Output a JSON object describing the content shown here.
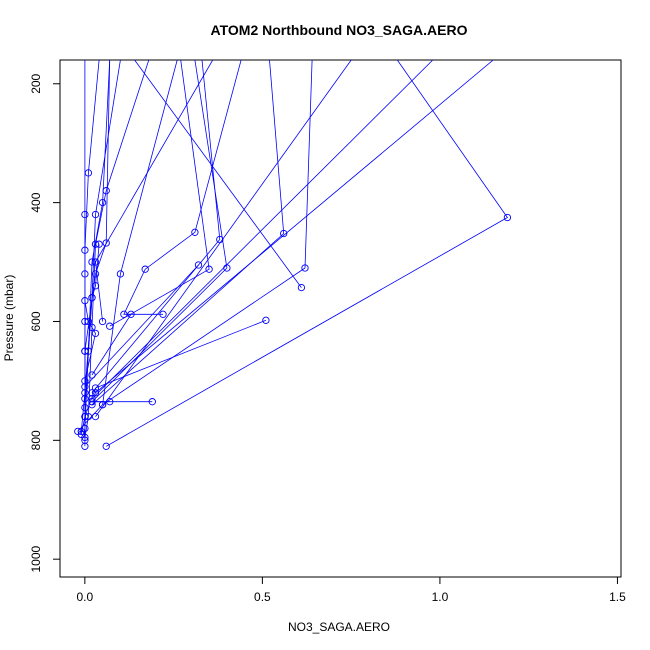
{
  "chart_data": {
    "type": "line",
    "title": "ATOM2 Northbound NO3_SAGA.AERO",
    "xlabel": "NO3_SAGA.AERO",
    "ylabel": "Pressure (mbar)",
    "xlim": [
      -0.07,
      1.51
    ],
    "ylim": [
      1030,
      160
    ],
    "y_reversed": true,
    "x_ticks": [
      0.0,
      0.5,
      1.0,
      1.5
    ],
    "x_tick_labels": [
      "0.0",
      "0.5",
      "1.0",
      "1.5"
    ],
    "y_ticks": [
      200,
      400,
      600,
      800,
      1000
    ],
    "y_tick_labels": [
      "200",
      "400",
      "600",
      "800",
      "1000"
    ],
    "grid": false,
    "legend": "none",
    "series_color": "#0000ff",
    "series": [
      {
        "points": [
          [
            0.07,
            160
          ],
          [
            0.05,
            400
          ],
          [
            0.02,
            500
          ],
          [
            0.01,
            650
          ],
          [
            0.0,
            780
          ],
          [
            0.0,
            810
          ]
        ]
      },
      {
        "points": [
          [
            0.04,
            160
          ],
          [
            0.01,
            350
          ],
          [
            0.0,
            480
          ],
          [
            0.0,
            600
          ],
          [
            0.0,
            760
          ],
          [
            -0.01,
            790
          ]
        ]
      },
      {
        "points": [
          [
            0.1,
            160
          ],
          [
            0.03,
            420
          ],
          [
            0.02,
            560
          ],
          [
            0.0,
            720
          ],
          [
            -0.01,
            785
          ]
        ]
      },
      {
        "points": [
          [
            0.18,
            160
          ],
          [
            0.06,
            380
          ],
          [
            0.03,
            470
          ],
          [
            0.02,
            610
          ],
          [
            0.01,
            760
          ],
          [
            0.0,
            795
          ]
        ]
      },
      {
        "points": [
          [
            0.0,
            160
          ],
          [
            0.0,
            420
          ],
          [
            0.0,
            520
          ],
          [
            0.0,
            650
          ],
          [
            0.0,
            800
          ]
        ]
      },
      {
        "points": [
          [
            0.26,
            160
          ],
          [
            0.1,
            520
          ],
          [
            0.05,
            740
          ],
          [
            -0.02,
            785
          ]
        ]
      },
      {
        "points": [
          [
            0.36,
            160
          ],
          [
            0.03,
            500
          ],
          [
            0.05,
            600
          ]
        ]
      },
      {
        "points": [
          [
            1.15,
            160
          ],
          [
            0.03,
            720
          ]
        ]
      },
      {
        "points": [
          [
            0.98,
            160
          ],
          [
            0.02,
            730
          ]
        ]
      },
      {
        "points": [
          [
            0.88,
            160
          ],
          [
            1.19,
            425
          ],
          [
            0.06,
            810
          ]
        ]
      },
      {
        "points": [
          [
            0.75,
            160
          ],
          [
            0.03,
            760
          ]
        ]
      },
      {
        "points": [
          [
            0.52,
            160
          ],
          [
            0.56,
            452
          ],
          [
            0.02,
            740
          ]
        ]
      },
      {
        "points": [
          [
            0.64,
            160
          ],
          [
            0.62,
            510
          ],
          [
            0.05,
            740
          ]
        ]
      },
      {
        "points": [
          [
            0.33,
            160
          ],
          [
            0.38,
            462
          ],
          [
            0.02,
            720
          ]
        ]
      },
      {
        "points": [
          [
            0.44,
            160
          ],
          [
            0.31,
            450
          ],
          [
            0.17,
            512
          ],
          [
            0.11,
            588
          ],
          [
            0.22,
            588
          ]
        ]
      },
      {
        "points": [
          [
            0.14,
            160
          ],
          [
            0.61,
            543
          ]
        ]
      },
      {
        "points": [
          [
            0.27,
            160
          ],
          [
            0.35,
            512
          ],
          [
            0.07,
            608
          ]
        ]
      },
      {
        "points": [
          [
            0.31,
            160
          ],
          [
            0.4,
            510
          ],
          [
            0.02,
            735
          ],
          [
            0.07,
            735
          ]
        ]
      },
      {
        "points": [
          [
            0.02,
            735
          ],
          [
            0.19,
            735
          ]
        ]
      },
      {
        "points": [
          [
            0.51,
            598
          ],
          [
            0.03,
            712
          ],
          [
            0.0,
            760
          ]
        ]
      },
      {
        "points": [
          [
            0.32,
            505
          ],
          [
            0.0,
            710
          ]
        ]
      },
      {
        "points": [
          [
            0.13,
            588
          ],
          [
            0.02,
            690
          ]
        ]
      },
      {
        "points": [
          [
            0.07,
            160
          ],
          [
            0.06,
            468
          ],
          [
            0.03,
            520
          ],
          [
            0.0,
            650
          ],
          [
            0.0,
            730
          ]
        ]
      },
      {
        "points": [
          [
            0.04,
            470
          ],
          [
            0.03,
            540
          ],
          [
            0.02,
            560
          ],
          [
            0.0,
            745
          ]
        ]
      },
      {
        "points": [
          [
            0.0,
            565
          ],
          [
            0.01,
            600
          ],
          [
            0.03,
            620
          ],
          [
            0.0,
            700
          ]
        ]
      }
    ]
  }
}
